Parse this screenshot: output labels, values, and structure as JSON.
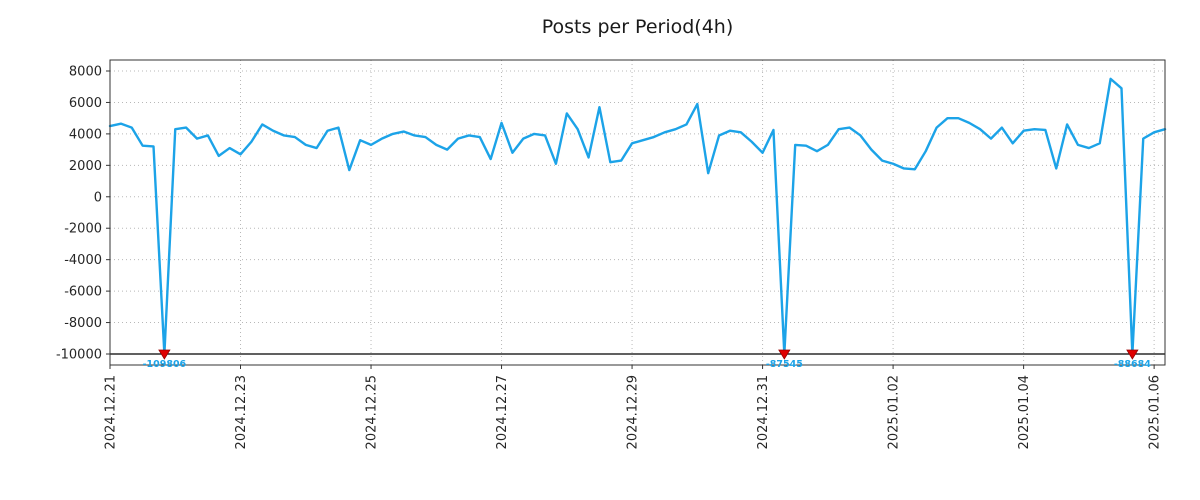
{
  "title": "Posts per Period(4h)",
  "chart_data": {
    "type": "line",
    "title": "Posts per Period(4h)",
    "period_hours": 4,
    "x_start_label": "2024.12.21",
    "values": [
      4500,
      4650,
      4400,
      3250,
      3200,
      -109806,
      4300,
      4400,
      3700,
      3900,
      2600,
      3100,
      2700,
      3500,
      4600,
      4200,
      3900,
      3800,
      3300,
      3100,
      4200,
      4400,
      1700,
      3600,
      3300,
      3700,
      4000,
      4150,
      3900,
      3800,
      3300,
      3000,
      3700,
      3900,
      3800,
      2400,
      4700,
      2800,
      3700,
      4000,
      3900,
      2100,
      5300,
      4300,
      2500,
      5700,
      2200,
      2300,
      3400,
      3600,
      3800,
      4100,
      4300,
      4600,
      5900,
      1500,
      3900,
      4200,
      4100,
      3500,
      2800,
      4250,
      -87545,
      3300,
      3250,
      2900,
      3300,
      4300,
      4400,
      3900,
      3000,
      2300,
      2100,
      1800,
      1750,
      2900,
      4400,
      5000,
      5000,
      4700,
      4300,
      3700,
      4400,
      3400,
      4200,
      4300,
      4250,
      1800,
      4600,
      3300,
      3100,
      3400,
      7500,
      6900,
      -88684,
      3700,
      4100,
      4300
    ],
    "x_tick_positions": [
      0,
      12,
      24,
      36,
      48,
      60,
      72,
      84,
      96
    ],
    "x_tick_labels": [
      "2024.12.21",
      "2024.12.23",
      "2024.12.25",
      "2024.12.27",
      "2024.12.29",
      "2024.12.31",
      "2025.01.02",
      "2025.01.04",
      "2025.01.06"
    ],
    "y_ticks": [
      8000,
      6000,
      4000,
      2000,
      0,
      -2000,
      -4000,
      -6000,
      -8000,
      -10000
    ],
    "ylim": [
      -10700,
      8700
    ],
    "clip_min": -10000,
    "baseline": -10000,
    "grid": true,
    "legend": "none",
    "line_color": "#1ca3e8",
    "marker_color": "#e00000",
    "marker_edge_color": "#990000",
    "annotation_color": "#1ca3e8",
    "annotations": [
      {
        "index": 5,
        "label": "-109806"
      },
      {
        "index": 62,
        "label": "-87545"
      },
      {
        "index": 94,
        "label": "-88684"
      }
    ]
  }
}
